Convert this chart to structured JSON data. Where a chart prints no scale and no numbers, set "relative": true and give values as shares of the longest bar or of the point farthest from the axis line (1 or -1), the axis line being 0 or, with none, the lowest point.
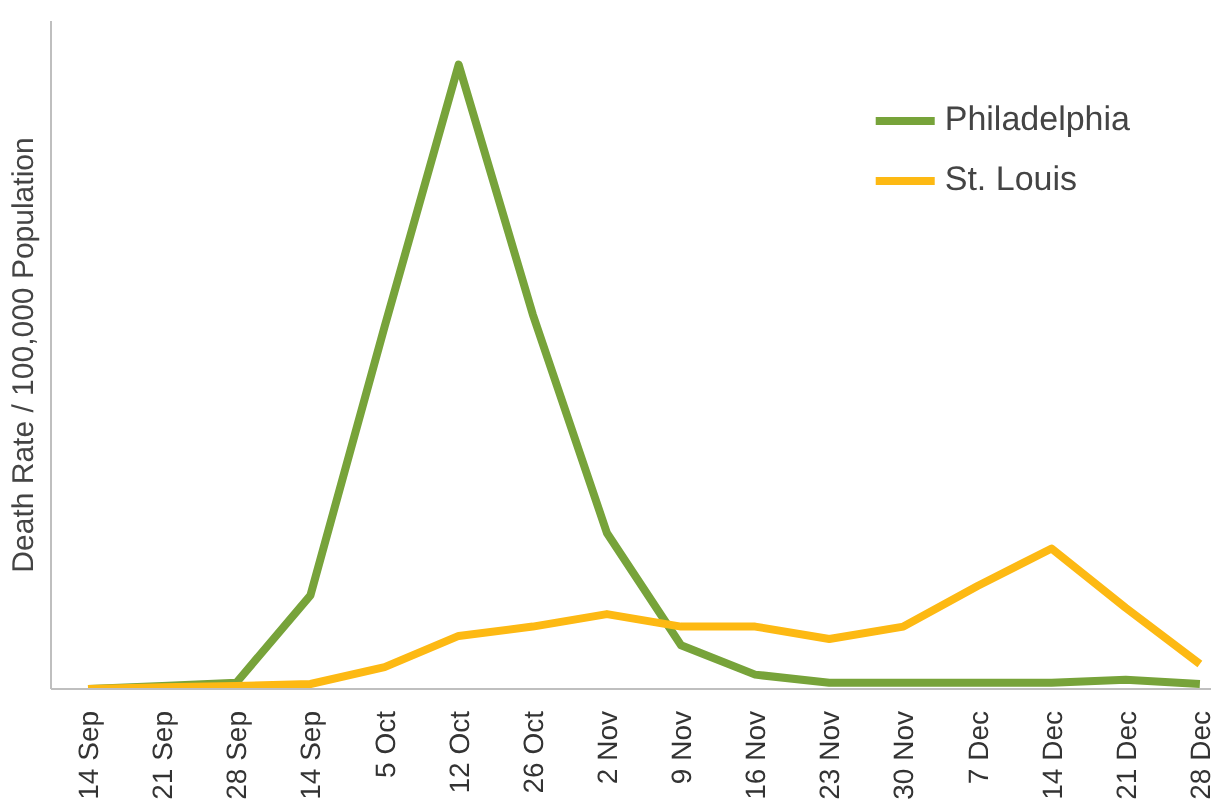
{
  "chart_data": {
    "type": "line",
    "ylabel": "Death Rate / 100,000 Population",
    "relative": true,
    "categories": [
      "14 Sep",
      "21 Sep",
      "28 Sep",
      "14 Sep",
      "5 Oct",
      "12 Oct",
      "26 Oct",
      "2 Nov",
      "9 Nov",
      "16 Nov",
      "23 Nov",
      "30 Nov",
      "7 Dec",
      "14 Dec",
      "21 Dec",
      "28 Dec"
    ],
    "series": [
      {
        "name": "Philadelphia",
        "color": "#77a33a",
        "values": [
          0,
          0.005,
          0.01,
          0.15,
          0.58,
          1.0,
          0.6,
          0.25,
          0.07,
          0.023,
          0.01,
          0.01,
          0.01,
          0.01,
          0.015,
          0.008
        ]
      },
      {
        "name": "St. Louis",
        "color": "#fdb913",
        "values": [
          0,
          0.003,
          0.005,
          0.008,
          0.035,
          0.085,
          0.1,
          0.12,
          0.1,
          0.1,
          0.08,
          0.1,
          0.165,
          0.225,
          0.13,
          0.04
        ]
      }
    ],
    "legend": "top right",
    "grid": false,
    "marker": "none",
    "line_style": "solid"
  }
}
